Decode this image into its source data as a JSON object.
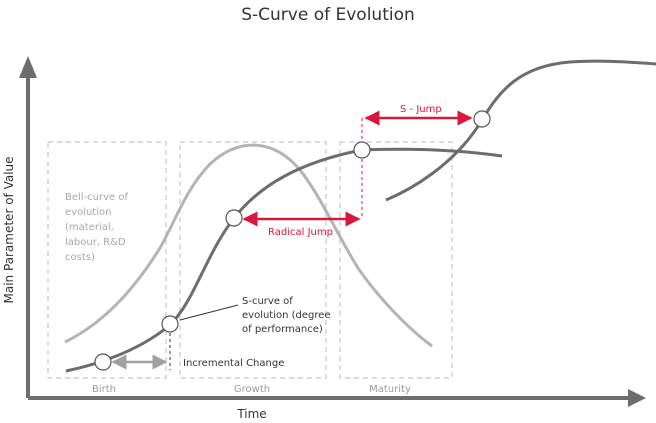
{
  "title": "S-Curve of Evolution",
  "axes": {
    "x_label": "Time",
    "y_label": "Main Parameter of Value"
  },
  "phases": [
    "Birth",
    "Growth",
    "Maturity"
  ],
  "bell_curve_label": [
    "Bell-curve of",
    "evolution",
    "(material,",
    "labour, R&D",
    "costs)"
  ],
  "s_curve_label": [
    "S-curve of",
    "evolution (degree",
    "of performance)"
  ],
  "annotations": {
    "incremental": "Incremental Change",
    "radical": "Radical Jump",
    "s_jump": "S - Jump"
  },
  "colors": {
    "s_curve": "#6d6d6d",
    "bell_curve": "#b4b4b4",
    "axis": "#6d6d6d",
    "accent": "#d6183d",
    "incremental_arrow": "#a0a0a0",
    "phase_box": "#c8c8c8"
  }
}
